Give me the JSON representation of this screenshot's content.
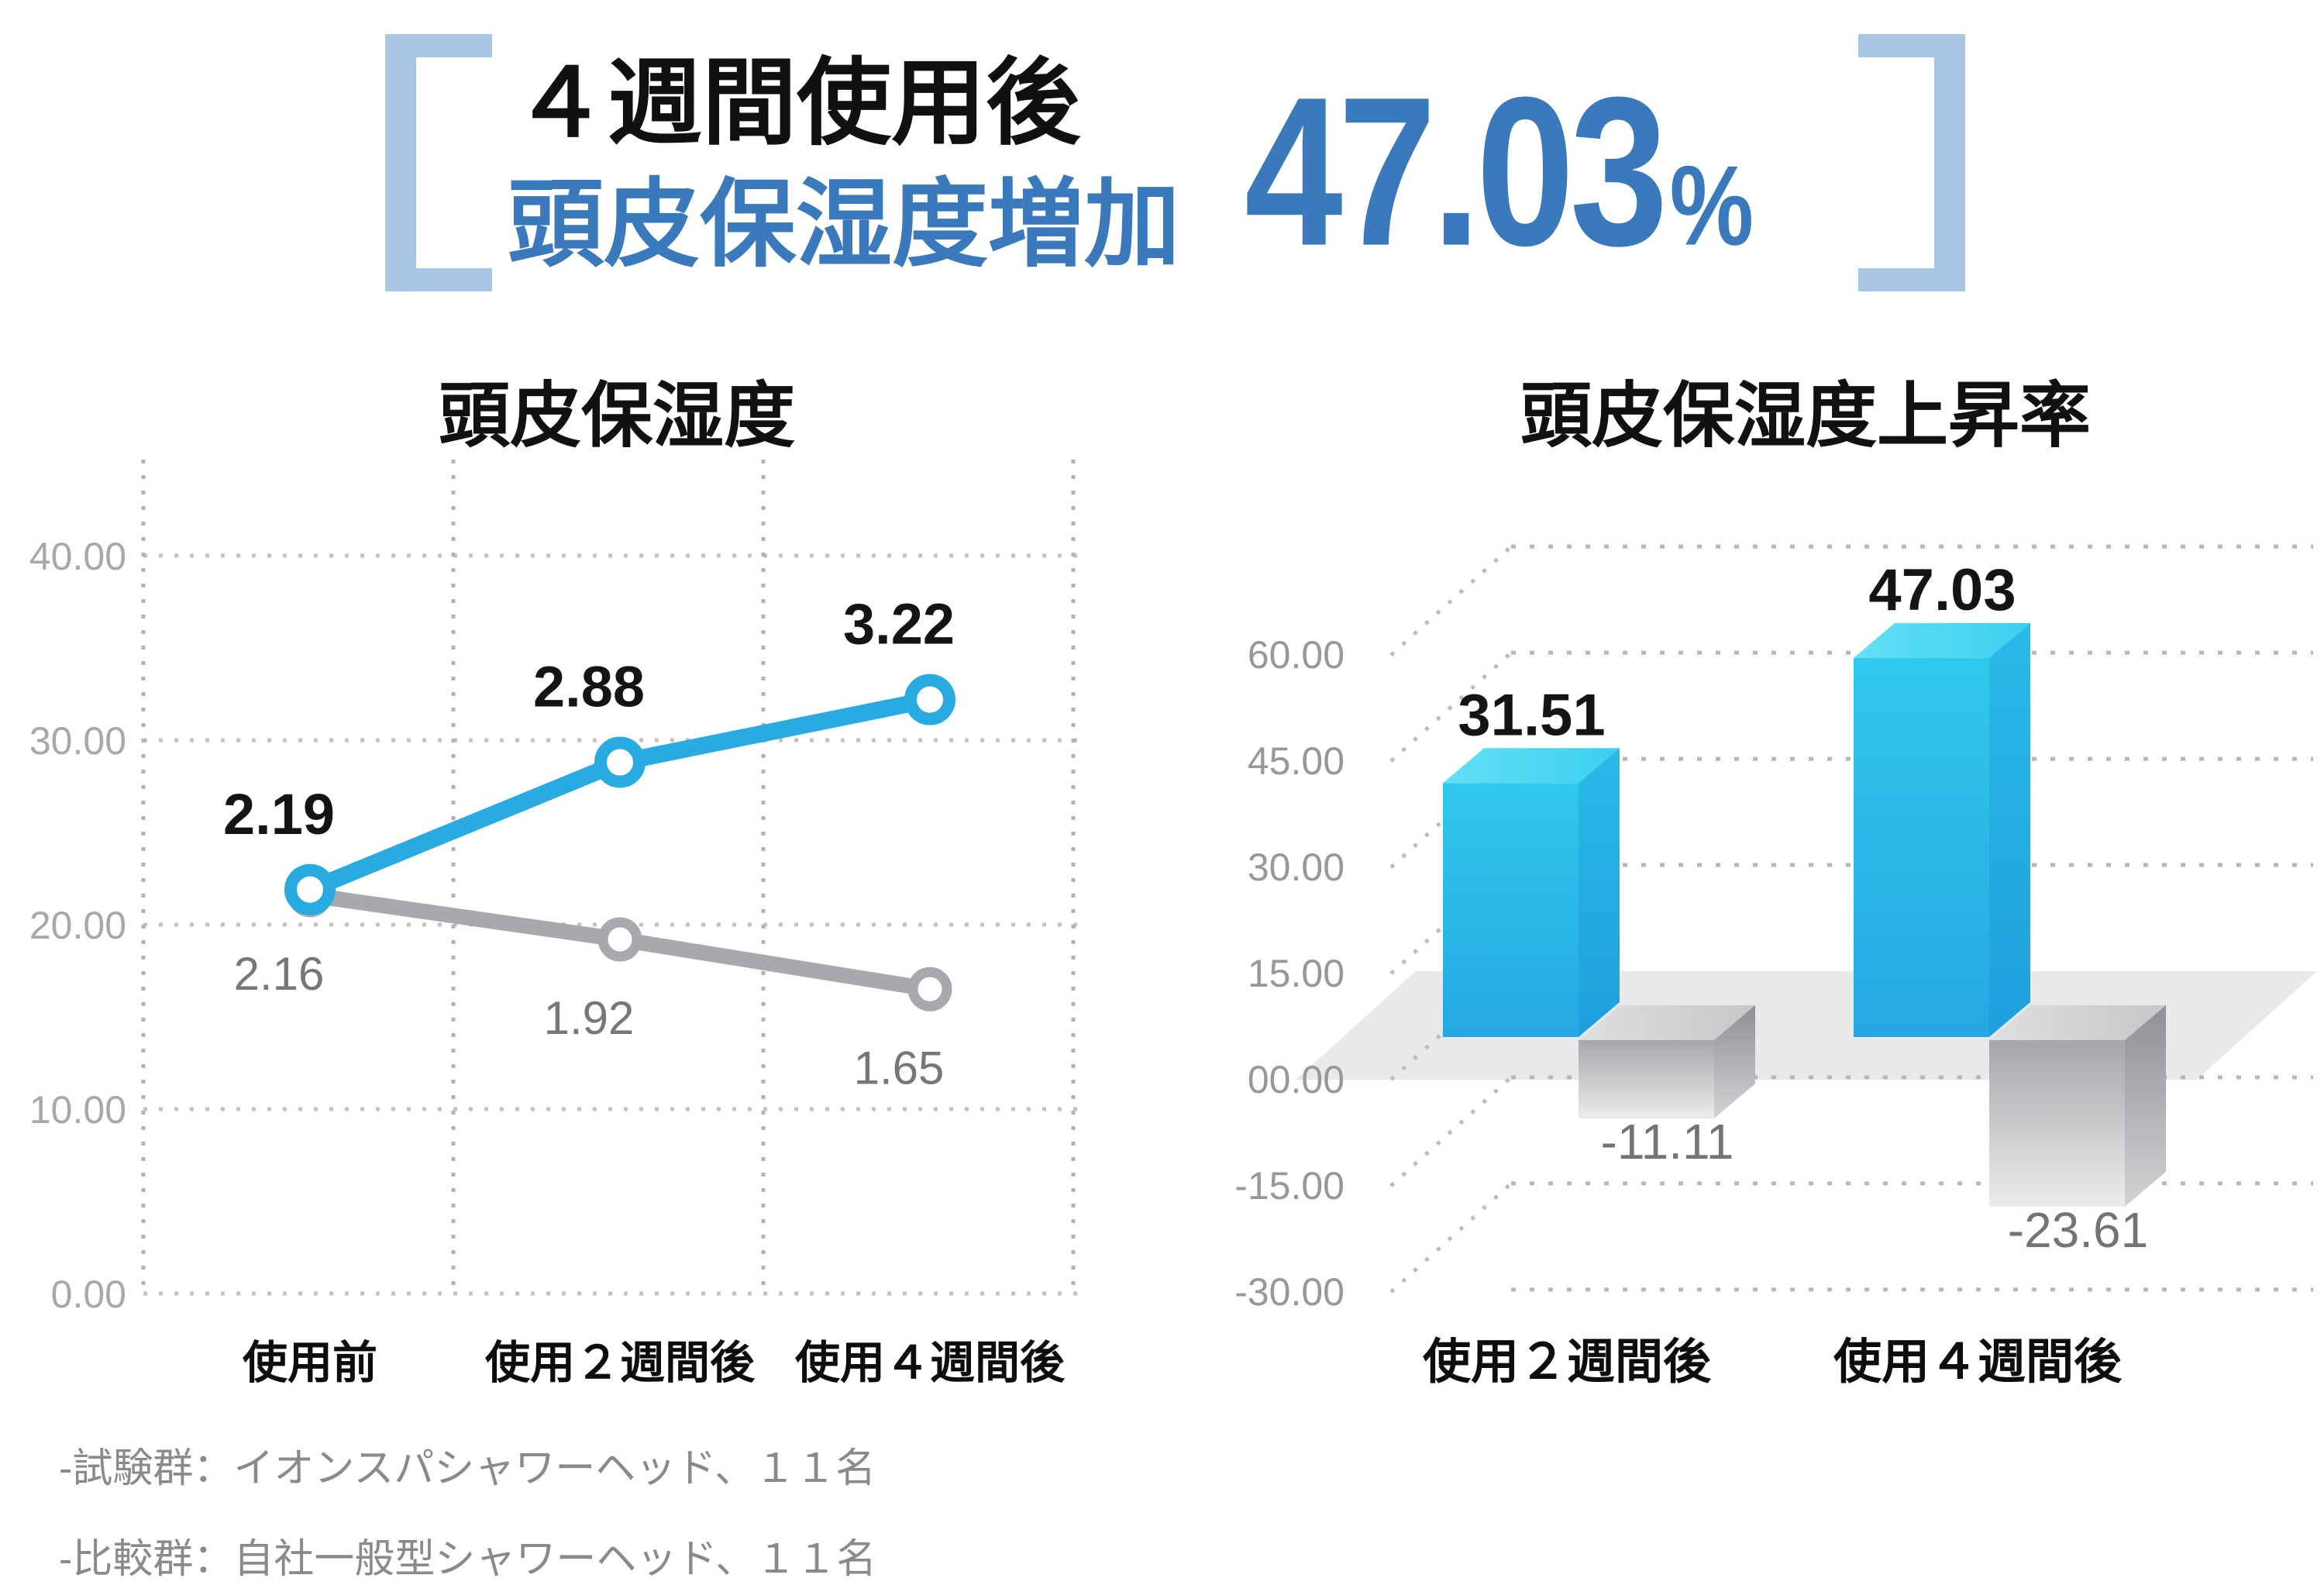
{
  "header": {
    "line1": "４週間使用後",
    "line2": "頭皮保湿度増加",
    "stat_value": "47.03",
    "stat_unit": "%",
    "accent_color": "#3a79bb",
    "bracket_color": "#a9c6e7"
  },
  "chart_data": [
    {
      "type": "line",
      "title": "頭皮保湿度",
      "categories": [
        "使用前",
        "使用２週間後",
        "使用４週間後"
      ],
      "ytick_labels": [
        "40.00",
        "30.00",
        "20.00",
        "10.00",
        "0.00"
      ],
      "ytick_values": [
        40,
        30,
        20,
        10,
        0
      ],
      "ylim": [
        0,
        40
      ],
      "grid": "dotted",
      "plot_scale": 10,
      "series": [
        {
          "name": "blue-line",
          "color": "#29abe2",
          "stroke_width": 22,
          "marker_radius": 25,
          "marker_stroke": 16,
          "z": 1,
          "values": [
            2.19,
            2.88,
            3.22
          ],
          "point_labels": [
            "2.19",
            "2.88",
            "3.22"
          ],
          "label_position": "above"
        },
        {
          "name": "gray-line",
          "color": "#a7a9ac",
          "stroke_width": 20,
          "marker_radius": 22,
          "marker_stroke": 13,
          "z": 0,
          "values": [
            2.16,
            1.92,
            1.65
          ],
          "point_labels": [
            "2.16",
            "1.92",
            "1.65"
          ],
          "label_position": "below"
        }
      ]
    },
    {
      "type": "bar",
      "style": "3d",
      "title": "頭皮保湿度上昇率",
      "categories": [
        "使用２週間後",
        "使用４週間後"
      ],
      "ytick_labels": [
        "60.00",
        "45.00",
        "30.00",
        "15.00",
        "00.00",
        "-15.00",
        "-30.00"
      ],
      "ytick_values": [
        60,
        45,
        30,
        15,
        0,
        -15,
        -30
      ],
      "ylim": [
        -30,
        60
      ],
      "grid": "dotted",
      "series": [
        {
          "name": "blue-bars",
          "color_front_top": "#30c8ec",
          "color_front_bottom": "#25a8e3",
          "color_top": "#52d8f1",
          "values": [
            31.51,
            47.03
          ],
          "value_labels": [
            "31.51",
            "47.03"
          ]
        },
        {
          "name": "gray-bars",
          "color_front_top": "#a6a7ab",
          "color_front_bottom": "#ebecec",
          "color_top": "#d6d7d9",
          "values": [
            -11.11,
            -23.61
          ],
          "value_labels": [
            "-11.11",
            "-23.61"
          ]
        }
      ]
    }
  ],
  "footnotes": [
    "-試験群：イオンスパシャワーヘッド、１１名",
    "-比較群：自社一般型シャワーヘッド、１１名"
  ]
}
